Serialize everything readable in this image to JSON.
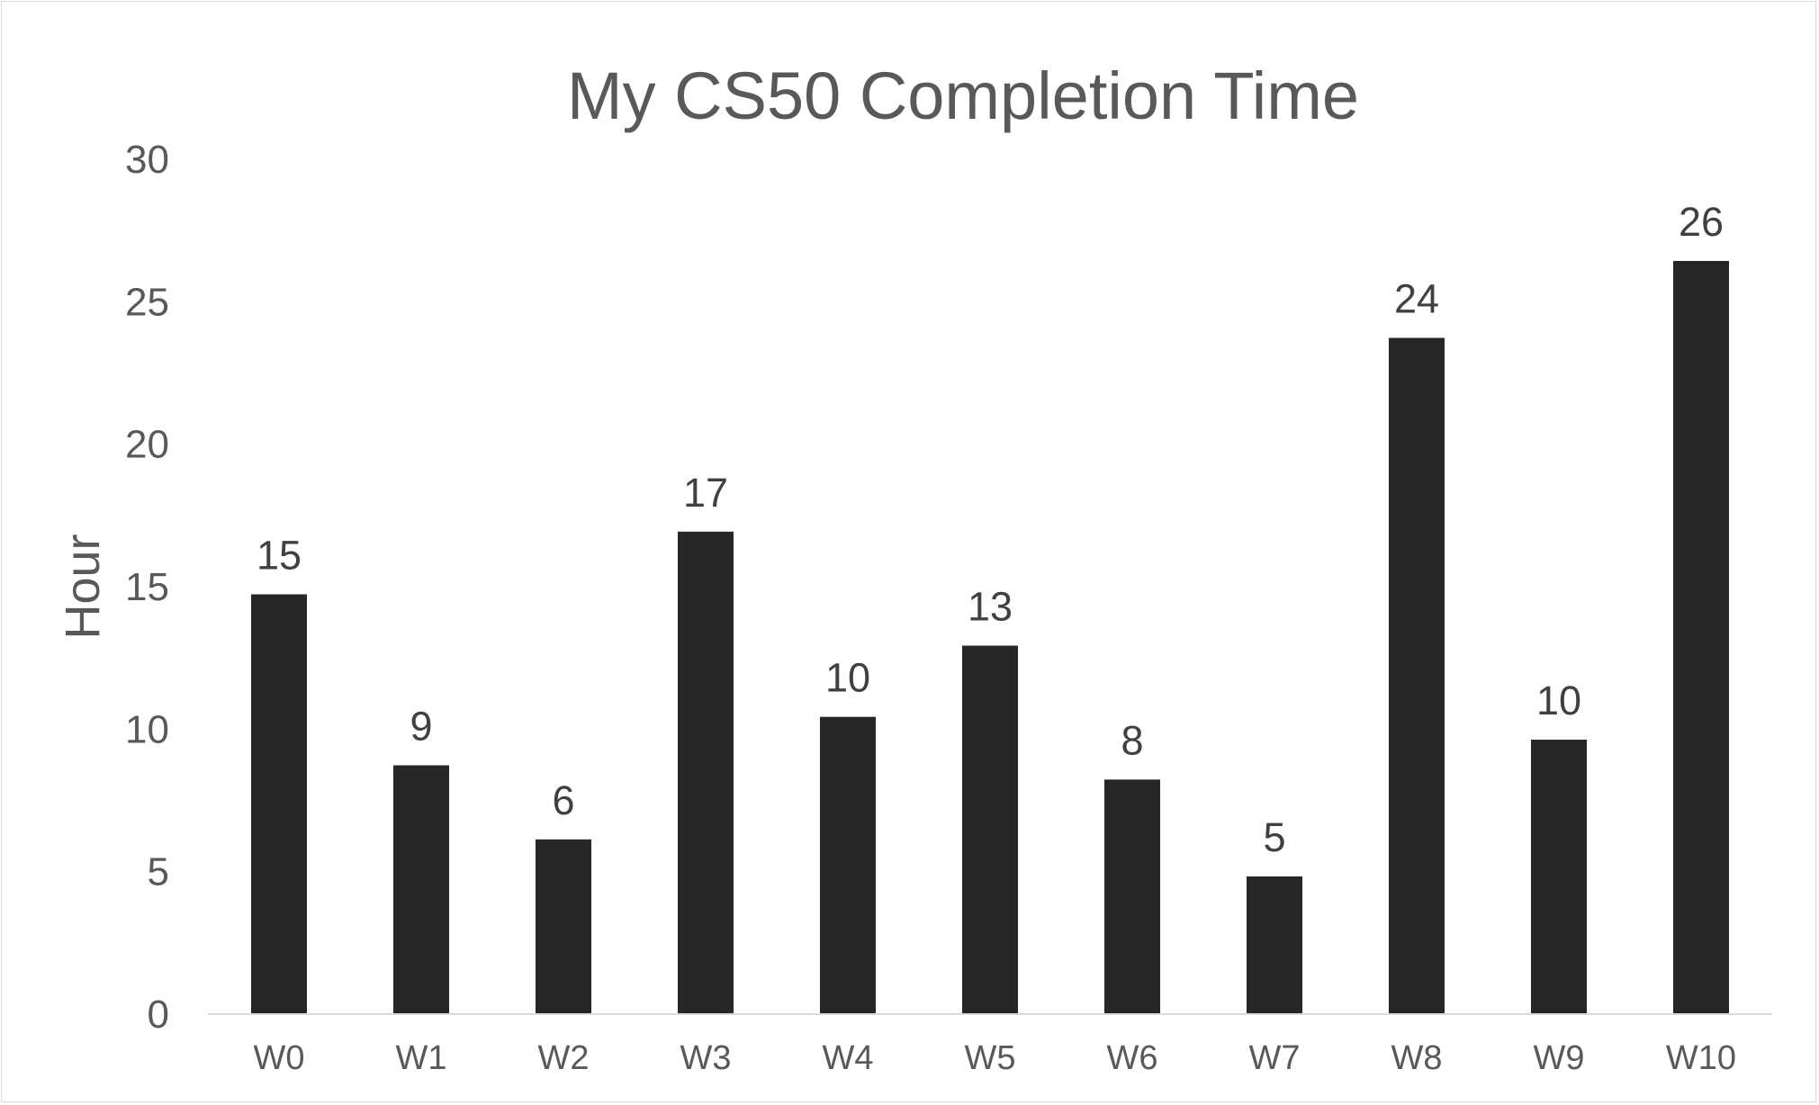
{
  "chart_data": {
    "type": "bar",
    "title": "My CS50 Completion Time",
    "ylabel": "Hour",
    "xlabel": "",
    "categories": [
      "W0",
      "W1",
      "W2",
      "W3",
      "W4",
      "W5",
      "W6",
      "W7",
      "W8",
      "W9",
      "W10"
    ],
    "values": [
      14.7,
      8.7,
      6.1,
      16.9,
      10.4,
      12.9,
      8.2,
      4.8,
      23.7,
      9.6,
      26.4
    ],
    "data_labels": [
      "15",
      "9",
      "6",
      "17",
      "10",
      "13",
      "8",
      "5",
      "24",
      "10",
      "26"
    ],
    "yticks": [
      "0",
      "5",
      "10",
      "15",
      "20",
      "25",
      "30"
    ],
    "ylim": [
      0,
      30
    ],
    "grid": false,
    "legend": "none",
    "bar_color": "#262626",
    "axis_color": "#d9d9d9"
  }
}
